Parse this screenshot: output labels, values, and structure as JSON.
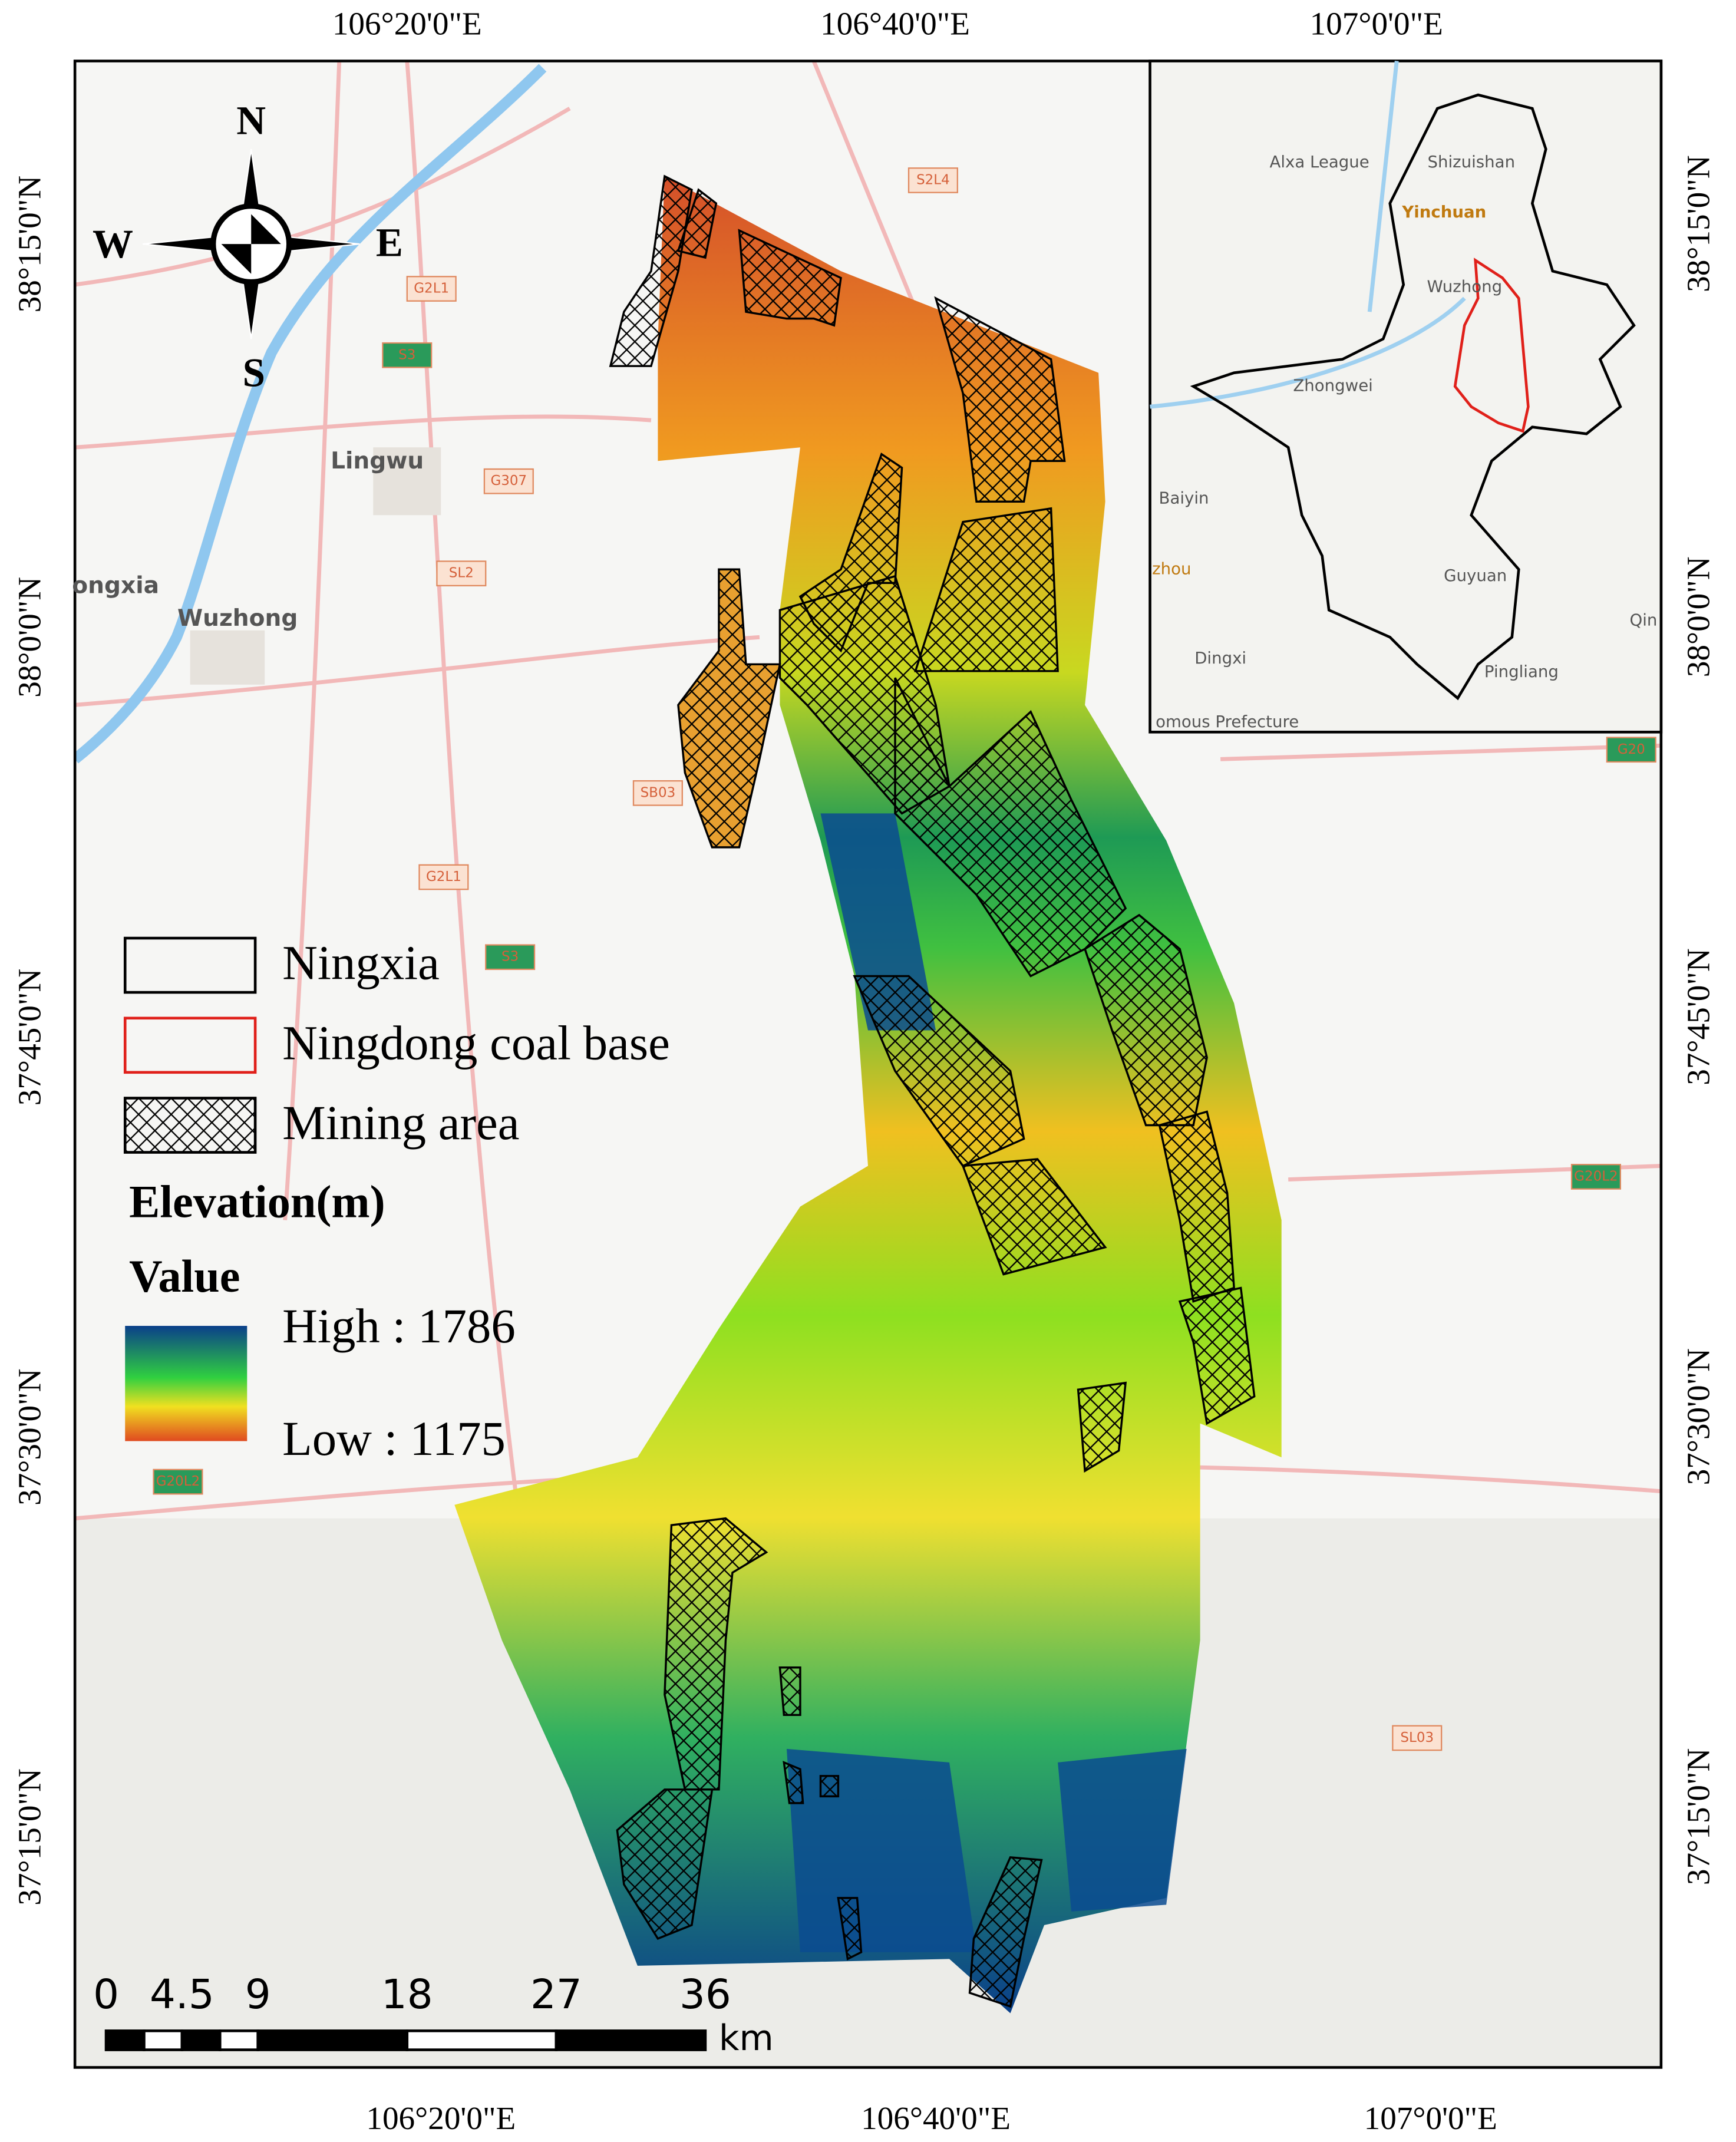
{
  "map": {
    "lon_labels_top": [
      "106°20'0\"E",
      "106°40'0\"E",
      "107°0'0\"E"
    ],
    "lon_labels_bottom": [
      "106°20'0\"E",
      "106°40'0\"E",
      "107°0'0\"E"
    ],
    "lat_labels_left": [
      "38°15'0\"N",
      "38°0'0\"N",
      "37°45'0\"N",
      "37°30'0\"N",
      "37°15'0\"N"
    ],
    "lat_labels_right": [
      "38°15'0\"N",
      "38°0'0\"N",
      "37°45'0\"N",
      "37°30'0\"N",
      "37°15'0\"N"
    ]
  },
  "compass": {
    "n": "N",
    "s": "S",
    "e": "E",
    "w": "W"
  },
  "legend": {
    "items": [
      "Ningxia",
      "Ningdong coal base",
      "Mining area"
    ],
    "elevation_title": "Elevation(m)",
    "value_title": "Value",
    "high": "High : 1786",
    "low": "Low : 1175"
  },
  "scale_bar": {
    "labels": [
      "0",
      "4.5",
      "9",
      "18",
      "27",
      "36"
    ],
    "unit": "km"
  },
  "base_labels": [
    "S2L4",
    "G2L1",
    "S3",
    "Lingwu",
    "G307",
    "SL2",
    "ongxia",
    "Wuzhong",
    "SB03",
    "G2L1",
    "S3",
    "G20",
    "G20L2",
    "G20L2",
    "SL03"
  ],
  "inset": {
    "labels": [
      "Alxa League",
      "Shizuishan",
      "Yinchuan",
      "Wuzhong",
      "Zhongwei",
      "Baiyin",
      "zhou",
      "Guyuan",
      "Dingxi",
      "Pingliang",
      "Qin",
      "omous Prefecture"
    ]
  }
}
